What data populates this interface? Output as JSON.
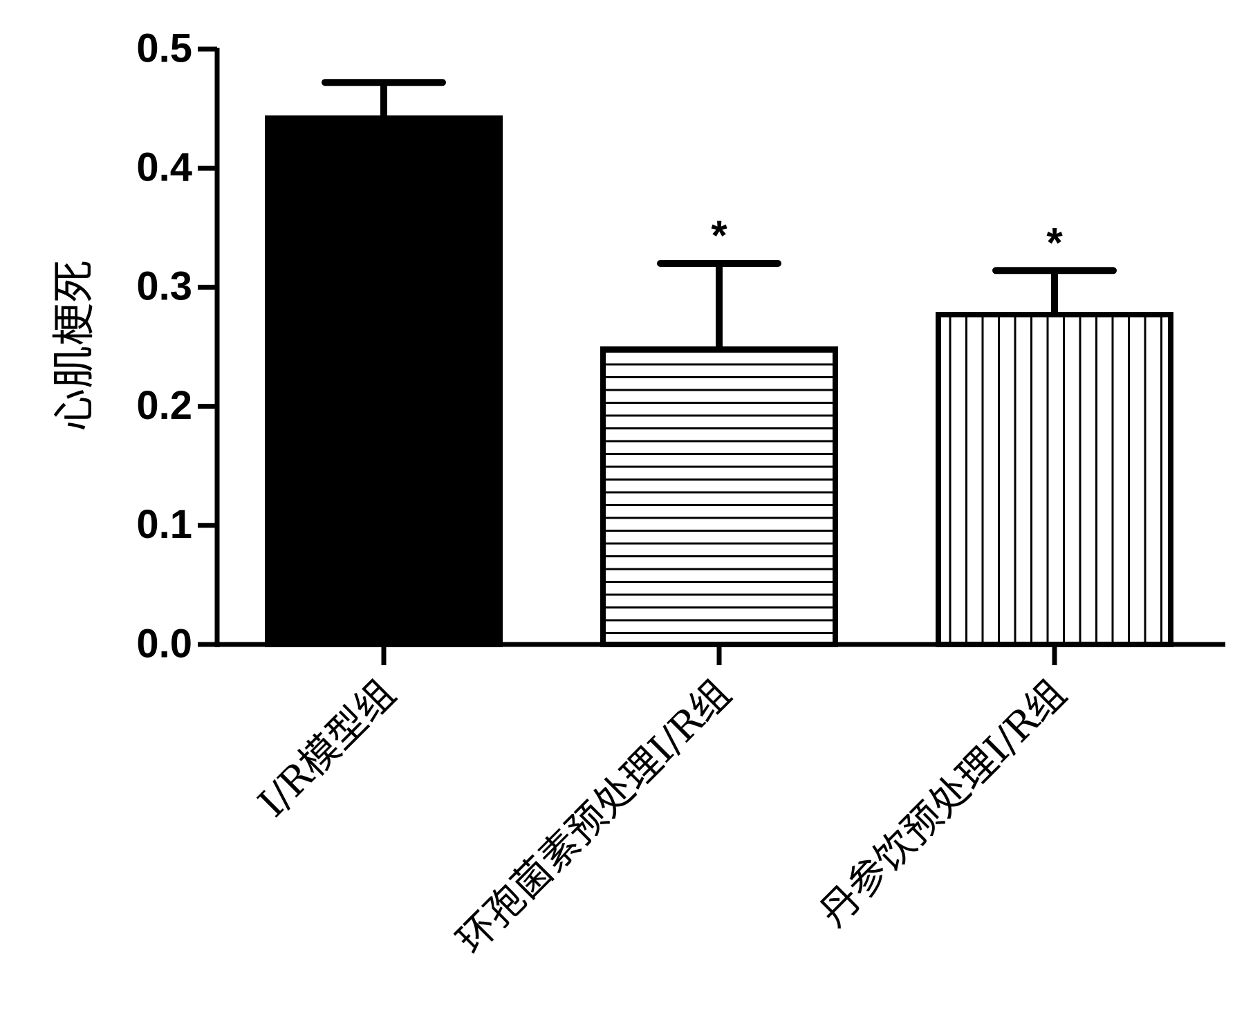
{
  "chart_data": {
    "type": "bar",
    "y_label": "心肌梗死",
    "categories": [
      "I/R模型组",
      "环孢菌素预处理I/R组",
      "丹参饮预处理I/R组"
    ],
    "values": [
      0.442,
      0.248,
      0.277
    ],
    "errors": [
      0.03,
      0.072,
      0.037
    ],
    "patterns": [
      "solid",
      "horizontal",
      "vertical"
    ],
    "color": "#000000",
    "annotations": [
      {
        "category": "环孢菌素预处理I/R组",
        "text": "*"
      },
      {
        "category": "丹参饮预处理I/R组",
        "text": "*"
      }
    ],
    "ylim": [
      0,
      0.5
    ],
    "yticks": [
      {
        "value": 0,
        "label": "0.0"
      },
      0.1,
      0.2,
      0.3,
      0.4,
      0.5
    ],
    "grid": false
  }
}
